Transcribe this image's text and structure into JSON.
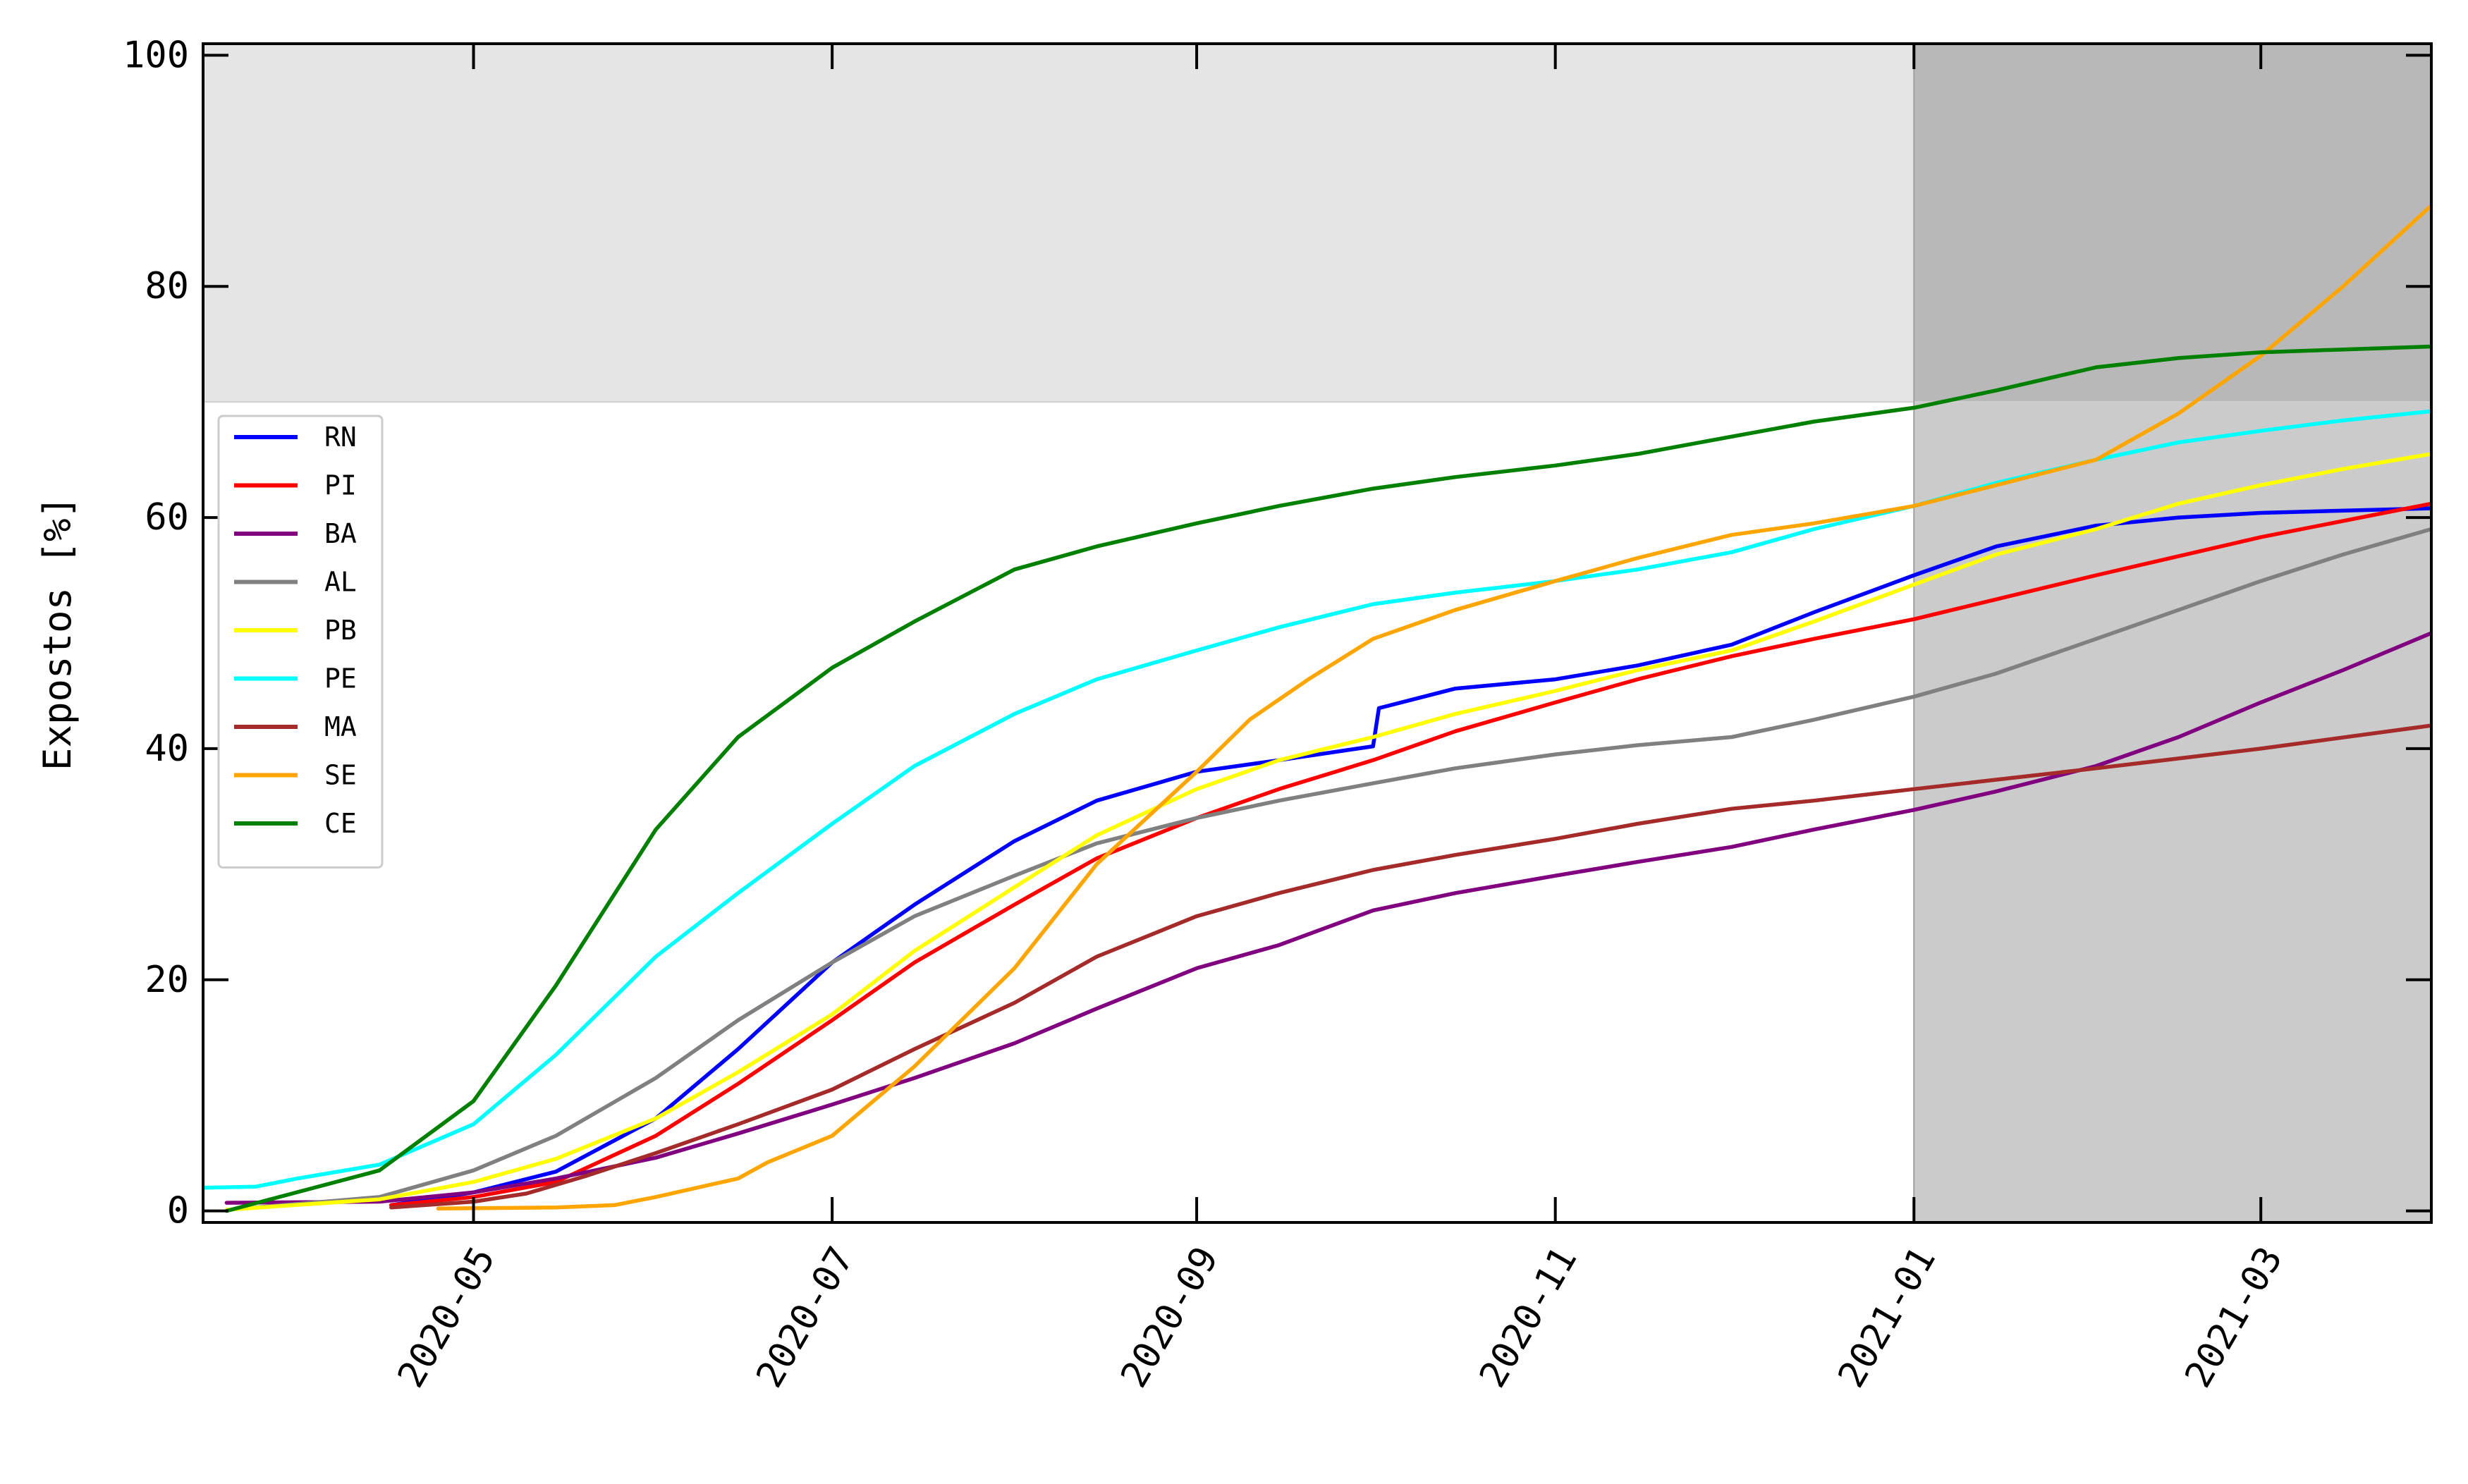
{
  "chart_data": {
    "type": "line",
    "title": "",
    "xlabel": "",
    "ylabel": "Expostos [%]",
    "xlim": [
      "2020-03-16",
      "2021-03-30"
    ],
    "ylim": [
      -1,
      101
    ],
    "x_ticks": [
      "2020-05-01",
      "2020-07-01",
      "2020-09-01",
      "2020-11-01",
      "2021-01-01",
      "2021-03-01"
    ],
    "x_tick_labels": [
      "2020-05",
      "2020-07",
      "2020-09",
      "2020-11",
      "2021-01",
      "2021-03"
    ],
    "y_ticks": [
      0,
      20,
      40,
      60,
      80,
      100
    ],
    "y_tick_labels": [
      "0",
      "20",
      "40",
      "60",
      "80",
      "100"
    ],
    "threshold_band": {
      "y_from": 70,
      "y_to": 101,
      "color": "#e5e5e5"
    },
    "forecast_region": {
      "x_from": "2021-01-01",
      "x_to": "2021-03-30",
      "color": "#cbcbcb",
      "upper_color": "#b8b8b8"
    },
    "grid": false,
    "legend_position": "center-left",
    "series": [
      {
        "name": "RN",
        "color": "#0000ff",
        "points": [
          [
            "2020-04-17",
            0.5
          ],
          [
            "2020-05-01",
            1.6
          ],
          [
            "2020-05-15",
            3.4
          ],
          [
            "2020-06-01",
            8.0
          ],
          [
            "2020-06-15",
            14.0
          ],
          [
            "2020-07-01",
            21.5
          ],
          [
            "2020-07-15",
            26.5
          ],
          [
            "2020-08-01",
            32.0
          ],
          [
            "2020-08-15",
            35.5
          ],
          [
            "2020-09-01",
            38.0
          ],
          [
            "2020-09-15",
            39.0
          ],
          [
            "2020-10-01",
            40.2
          ],
          [
            "2020-10-02",
            43.5
          ],
          [
            "2020-10-15",
            45.2
          ],
          [
            "2020-11-01",
            46.0
          ],
          [
            "2020-11-15",
            47.2
          ],
          [
            "2020-12-01",
            49.0
          ],
          [
            "2020-12-15",
            51.8
          ],
          [
            "2021-01-01",
            55.0
          ],
          [
            "2021-01-15",
            57.5
          ],
          [
            "2021-02-01",
            59.3
          ],
          [
            "2021-02-15",
            60.0
          ],
          [
            "2021-03-01",
            60.4
          ],
          [
            "2021-03-30",
            60.8
          ]
        ]
      },
      {
        "name": "PI",
        "color": "#ff0000",
        "points": [
          [
            "2020-04-17",
            0.5
          ],
          [
            "2020-05-01",
            1.2
          ],
          [
            "2020-05-15",
            2.5
          ],
          [
            "2020-06-01",
            6.5
          ],
          [
            "2020-06-15",
            11.0
          ],
          [
            "2020-07-01",
            16.5
          ],
          [
            "2020-07-15",
            21.5
          ],
          [
            "2020-08-01",
            26.5
          ],
          [
            "2020-08-15",
            30.5
          ],
          [
            "2020-09-01",
            34.0
          ],
          [
            "2020-09-15",
            36.5
          ],
          [
            "2020-10-01",
            39.0
          ],
          [
            "2020-10-15",
            41.5
          ],
          [
            "2020-11-01",
            44.0
          ],
          [
            "2020-11-15",
            46.0
          ],
          [
            "2020-12-01",
            48.0
          ],
          [
            "2020-12-15",
            49.5
          ],
          [
            "2021-01-01",
            51.2
          ],
          [
            "2021-02-01",
            55.0
          ],
          [
            "2021-03-01",
            58.3
          ],
          [
            "2021-03-30",
            61.2
          ]
        ]
      },
      {
        "name": "BA",
        "color": "#800080",
        "points": [
          [
            "2020-03-20",
            0.7
          ],
          [
            "2020-04-15",
            0.8
          ],
          [
            "2020-05-01",
            1.6
          ],
          [
            "2020-05-15",
            2.8
          ],
          [
            "2020-06-01",
            4.6
          ],
          [
            "2020-06-15",
            6.7
          ],
          [
            "2020-07-01",
            9.2
          ],
          [
            "2020-07-15",
            11.5
          ],
          [
            "2020-08-01",
            14.5
          ],
          [
            "2020-08-15",
            17.5
          ],
          [
            "2020-09-01",
            21.0
          ],
          [
            "2020-09-15",
            23.0
          ],
          [
            "2020-10-01",
            26.0
          ],
          [
            "2020-10-15",
            27.5
          ],
          [
            "2020-11-01",
            29.0
          ],
          [
            "2020-11-15",
            30.2
          ],
          [
            "2020-12-01",
            31.5
          ],
          [
            "2020-12-15",
            33.0
          ],
          [
            "2021-01-01",
            34.7
          ],
          [
            "2021-01-15",
            36.3
          ],
          [
            "2021-02-01",
            38.5
          ],
          [
            "2021-02-15",
            41.0
          ],
          [
            "2021-03-01",
            44.0
          ],
          [
            "2021-03-15",
            46.8
          ],
          [
            "2021-03-30",
            50.0
          ]
        ]
      },
      {
        "name": "AL",
        "color": "#808080",
        "points": [
          [
            "2020-03-25",
            0.3
          ],
          [
            "2020-04-15",
            1.2
          ],
          [
            "2020-05-01",
            3.5
          ],
          [
            "2020-05-15",
            6.5
          ],
          [
            "2020-06-01",
            11.5
          ],
          [
            "2020-06-15",
            16.5
          ],
          [
            "2020-07-01",
            21.5
          ],
          [
            "2020-07-15",
            25.5
          ],
          [
            "2020-08-01",
            29.0
          ],
          [
            "2020-08-15",
            31.8
          ],
          [
            "2020-09-01",
            34.0
          ],
          [
            "2020-09-15",
            35.5
          ],
          [
            "2020-10-01",
            37.0
          ],
          [
            "2020-10-15",
            38.3
          ],
          [
            "2020-11-01",
            39.5
          ],
          [
            "2020-11-15",
            40.3
          ],
          [
            "2020-12-01",
            41.0
          ],
          [
            "2020-12-15",
            42.5
          ],
          [
            "2021-01-01",
            44.5
          ],
          [
            "2021-01-15",
            46.5
          ],
          [
            "2021-02-01",
            49.5
          ],
          [
            "2021-02-15",
            52.0
          ],
          [
            "2021-03-01",
            54.5
          ],
          [
            "2021-03-15",
            56.8
          ],
          [
            "2021-03-30",
            59.0
          ]
        ]
      },
      {
        "name": "PB",
        "color": "#ffff00",
        "points": [
          [
            "2020-03-20",
            0.1
          ],
          [
            "2020-04-15",
            1.0
          ],
          [
            "2020-05-01",
            2.5
          ],
          [
            "2020-05-15",
            4.5
          ],
          [
            "2020-06-01",
            8.0
          ],
          [
            "2020-06-15",
            12.0
          ],
          [
            "2020-07-01",
            17.0
          ],
          [
            "2020-07-15",
            22.5
          ],
          [
            "2020-08-01",
            28.0
          ],
          [
            "2020-08-15",
            32.5
          ],
          [
            "2020-09-01",
            36.5
          ],
          [
            "2020-09-15",
            39.0
          ],
          [
            "2020-10-01",
            41.0
          ],
          [
            "2020-10-15",
            43.0
          ],
          [
            "2020-11-01",
            45.0
          ],
          [
            "2020-11-15",
            46.8
          ],
          [
            "2020-12-01",
            48.5
          ],
          [
            "2020-12-15",
            51.0
          ],
          [
            "2021-01-01",
            54.2
          ],
          [
            "2021-01-15",
            56.8
          ],
          [
            "2021-02-01",
            59.0
          ],
          [
            "2021-02-15",
            61.2
          ],
          [
            "2021-03-01",
            62.8
          ],
          [
            "2021-03-15",
            64.2
          ],
          [
            "2021-03-30",
            65.5
          ]
        ]
      },
      {
        "name": "PE",
        "color": "#00ffff",
        "points": [
          [
            "2020-03-16",
            2.0
          ],
          [
            "2020-03-25",
            2.1
          ],
          [
            "2020-04-01",
            2.8
          ],
          [
            "2020-04-15",
            4.0
          ],
          [
            "2020-05-01",
            7.5
          ],
          [
            "2020-05-15",
            13.5
          ],
          [
            "2020-06-01",
            22.0
          ],
          [
            "2020-06-15",
            27.5
          ],
          [
            "2020-07-01",
            33.5
          ],
          [
            "2020-07-15",
            38.5
          ],
          [
            "2020-08-01",
            43.0
          ],
          [
            "2020-08-15",
            46.0
          ],
          [
            "2020-09-01",
            48.5
          ],
          [
            "2020-09-15",
            50.5
          ],
          [
            "2020-10-01",
            52.5
          ],
          [
            "2020-10-15",
            53.5
          ],
          [
            "2020-11-01",
            54.5
          ],
          [
            "2020-11-15",
            55.5
          ],
          [
            "2020-12-01",
            57.0
          ],
          [
            "2020-12-15",
            59.0
          ],
          [
            "2021-01-01",
            61.0
          ],
          [
            "2021-01-15",
            63.0
          ],
          [
            "2021-02-01",
            65.0
          ],
          [
            "2021-02-15",
            66.5
          ],
          [
            "2021-03-01",
            67.5
          ],
          [
            "2021-03-15",
            68.4
          ],
          [
            "2021-03-30",
            69.2
          ]
        ]
      },
      {
        "name": "MA",
        "color": "#a52a2a",
        "points": [
          [
            "2020-04-17",
            0.3
          ],
          [
            "2020-05-01",
            0.8
          ],
          [
            "2020-05-10",
            1.5
          ],
          [
            "2020-05-20",
            3.0
          ],
          [
            "2020-06-01",
            5.0
          ],
          [
            "2020-06-15",
            7.5
          ],
          [
            "2020-07-01",
            10.5
          ],
          [
            "2020-07-15",
            14.0
          ],
          [
            "2020-08-01",
            18.0
          ],
          [
            "2020-08-15",
            22.0
          ],
          [
            "2020-09-01",
            25.5
          ],
          [
            "2020-09-15",
            27.5
          ],
          [
            "2020-10-01",
            29.5
          ],
          [
            "2020-10-15",
            30.8
          ],
          [
            "2020-11-01",
            32.2
          ],
          [
            "2020-11-15",
            33.5
          ],
          [
            "2020-12-01",
            34.8
          ],
          [
            "2020-12-15",
            35.5
          ],
          [
            "2021-01-01",
            36.5
          ],
          [
            "2021-02-01",
            38.3
          ],
          [
            "2021-03-01",
            40.0
          ],
          [
            "2021-03-30",
            42.0
          ]
        ]
      },
      {
        "name": "SE",
        "color": "#ffa500",
        "points": [
          [
            "2020-04-25",
            0.2
          ],
          [
            "2020-05-15",
            0.3
          ],
          [
            "2020-05-25",
            0.5
          ],
          [
            "2020-06-01",
            1.2
          ],
          [
            "2020-06-15",
            2.8
          ],
          [
            "2020-06-20",
            4.2
          ],
          [
            "2020-07-01",
            6.5
          ],
          [
            "2020-07-15",
            12.5
          ],
          [
            "2020-08-01",
            21.0
          ],
          [
            "2020-08-15",
            30.0
          ],
          [
            "2020-09-01",
            38.0
          ],
          [
            "2020-09-10",
            42.5
          ],
          [
            "2020-09-20",
            46.0
          ],
          [
            "2020-10-01",
            49.5
          ],
          [
            "2020-10-15",
            52.0
          ],
          [
            "2020-11-01",
            54.5
          ],
          [
            "2020-11-15",
            56.5
          ],
          [
            "2020-12-01",
            58.5
          ],
          [
            "2020-12-15",
            59.5
          ],
          [
            "2021-01-01",
            61.0
          ],
          [
            "2021-01-15",
            62.8
          ],
          [
            "2021-02-01",
            65.0
          ],
          [
            "2021-02-15",
            69.0
          ],
          [
            "2021-03-01",
            74.0
          ],
          [
            "2021-03-15",
            80.0
          ],
          [
            "2021-03-30",
            87.0
          ]
        ]
      },
      {
        "name": "CE",
        "color": "#008000",
        "points": [
          [
            "2020-03-20",
            0.0
          ],
          [
            "2020-04-15",
            3.5
          ],
          [
            "2020-05-01",
            9.5
          ],
          [
            "2020-05-15",
            19.5
          ],
          [
            "2020-06-01",
            33.0
          ],
          [
            "2020-06-15",
            41.0
          ],
          [
            "2020-07-01",
            47.0
          ],
          [
            "2020-07-15",
            51.0
          ],
          [
            "2020-08-01",
            55.5
          ],
          [
            "2020-08-15",
            57.5
          ],
          [
            "2020-09-01",
            59.5
          ],
          [
            "2020-09-15",
            61.0
          ],
          [
            "2020-10-01",
            62.5
          ],
          [
            "2020-10-15",
            63.5
          ],
          [
            "2020-11-01",
            64.5
          ],
          [
            "2020-11-15",
            65.5
          ],
          [
            "2020-12-01",
            67.0
          ],
          [
            "2020-12-15",
            68.3
          ],
          [
            "2021-01-01",
            69.5
          ],
          [
            "2021-01-15",
            71.0
          ],
          [
            "2021-02-01",
            73.0
          ],
          [
            "2021-02-15",
            73.8
          ],
          [
            "2021-03-01",
            74.3
          ],
          [
            "2021-03-30",
            74.8
          ]
        ]
      }
    ]
  }
}
